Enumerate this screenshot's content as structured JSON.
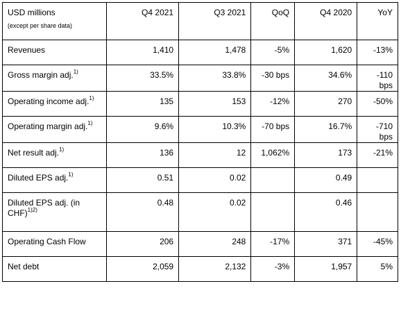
{
  "header": {
    "label_main": "USD millions",
    "label_sub": "(except per share data)",
    "columns": [
      "Q4 2021",
      "Q3 2021",
      "QoQ",
      "Q4 2020",
      "YoY"
    ]
  },
  "rows": [
    {
      "label": "Revenues",
      "sup": "",
      "label_line2": "",
      "sup2": "",
      "values": [
        "1,410",
        "1,478",
        "-5%",
        "1,620",
        "-13%"
      ]
    },
    {
      "label": "Gross margin adj.",
      "sup": "1)",
      "label_line2": "",
      "sup2": "",
      "values": [
        "33.5%",
        "33.8%",
        "-30 bps",
        "34.6%",
        "-110 bps"
      ]
    },
    {
      "label": "Operating income adj.",
      "sup": "1)",
      "label_line2": "",
      "sup2": "",
      "values": [
        "135",
        "153",
        "-12%",
        "270",
        "-50%"
      ]
    },
    {
      "label": "Operating margin adj.",
      "sup": "1)",
      "label_line2": "",
      "sup2": "",
      "values": [
        "9.6%",
        "10.3%",
        "-70 bps",
        "16.7%",
        "-710 bps"
      ]
    },
    {
      "label": "Net result adj.",
      "sup": "1)",
      "label_line2": "",
      "sup2": "",
      "values": [
        "136",
        "12",
        "1,062%",
        "173",
        "-21%"
      ]
    },
    {
      "label": "Diluted EPS adj.",
      "sup": "1)",
      "label_line2": "",
      "sup2": "",
      "values": [
        "0.51",
        "0.02",
        "",
        "0.49",
        ""
      ]
    },
    {
      "label": "Diluted EPS adj. (in",
      "sup": "",
      "label_line2": "CHF)",
      "sup2": "1)2)",
      "values": [
        "0.48",
        "0.02",
        "",
        "0.46",
        ""
      ]
    },
    {
      "label": "Operating Cash Flow",
      "sup": "",
      "label_line2": "",
      "sup2": "",
      "values": [
        "206",
        "248",
        "-17%",
        "371",
        "-45%"
      ]
    },
    {
      "label": "Net debt",
      "sup": "",
      "label_line2": "",
      "sup2": "",
      "values": [
        "2,059",
        "2,132",
        "-3%",
        "1,957",
        "5%"
      ]
    }
  ]
}
